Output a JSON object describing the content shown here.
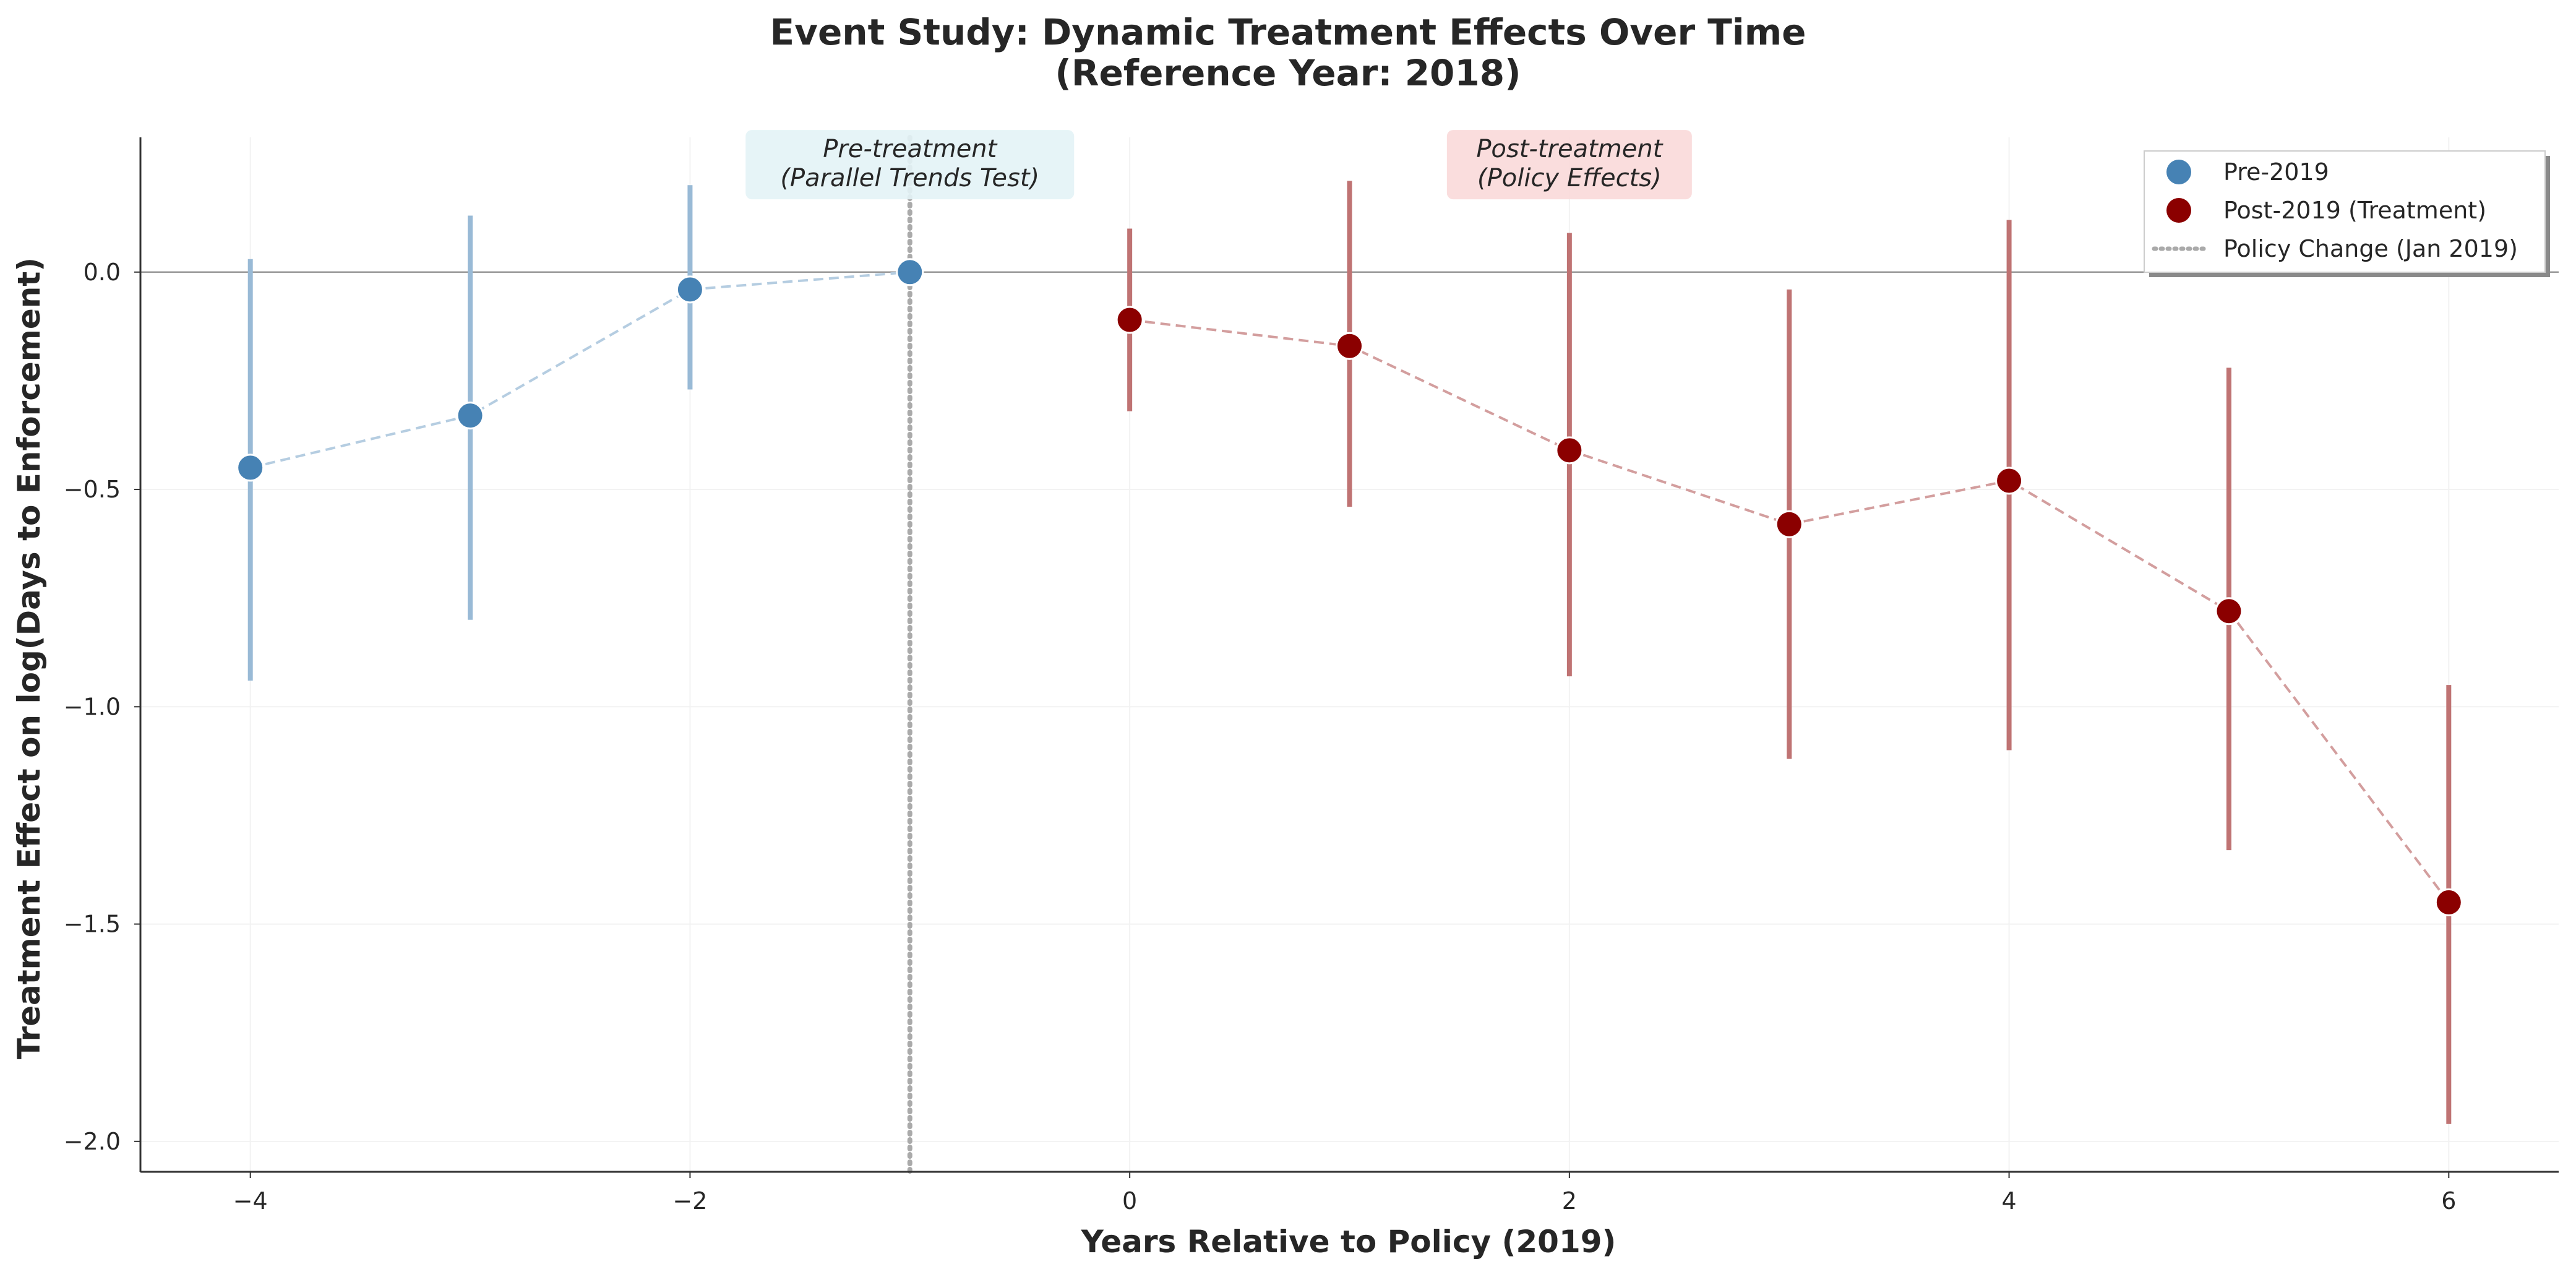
{
  "chart_data": {
    "type": "scatter",
    "title": "Event Study: Dynamic Treatment Effects Over Time",
    "subtitle": "(Reference Year: 2018)",
    "xlabel": "Years Relative to Policy (2019)",
    "ylabel": "Treatment Effect on log(Days to Enforcement)",
    "xlim": [
      -4.5,
      6.5
    ],
    "ylim": [
      -2.07,
      0.31
    ],
    "xticks": [
      -4,
      -2,
      0,
      2,
      4,
      6
    ],
    "xtick_labels": [
      "−4",
      "−2",
      "0",
      "2",
      "4",
      "6"
    ],
    "yticks": [
      0.0,
      -0.5,
      -1.0,
      -1.5,
      -2.0
    ],
    "ytick_labels": [
      "0.0",
      "−0.5",
      "−1.0",
      "−1.5",
      "−2.0"
    ],
    "grid": true,
    "legend_position": "top-right",
    "series": [
      {
        "name": "Pre-2019",
        "color": "#4682b4",
        "x": [
          -4,
          -3,
          -2,
          -1
        ],
        "y": [
          -0.45,
          -0.33,
          -0.04,
          0.0
        ],
        "ci_low": [
          -0.94,
          -0.8,
          -0.27,
          0.0
        ],
        "ci_high": [
          0.03,
          0.13,
          0.2,
          0.0
        ]
      },
      {
        "name": "Post-2019 (Treatment)",
        "color": "#8b0000",
        "x": [
          0,
          1,
          2,
          3,
          4,
          5,
          6
        ],
        "y": [
          -0.11,
          -0.17,
          -0.41,
          -0.58,
          -0.48,
          -0.78,
          -1.45
        ],
        "ci_low": [
          -0.32,
          -0.54,
          -0.93,
          -1.12,
          -1.1,
          -1.33,
          -1.96
        ],
        "ci_high": [
          0.1,
          0.21,
          0.09,
          -0.04,
          0.12,
          -0.22,
          -0.95
        ]
      }
    ],
    "reference_lines": {
      "vertical": {
        "x": -1,
        "label": "Policy Change (Jan 2019)",
        "color": "#aaaaaa"
      },
      "horizontal": {
        "y": 0
      }
    },
    "annotations": [
      {
        "lines": [
          "Pre-treatment",
          "(Parallel Trends Test)"
        ],
        "x": -1,
        "y": 0.27,
        "color": "#e3f3f6"
      },
      {
        "lines": [
          "Post-treatment",
          "(Policy Effects)"
        ],
        "x": 2,
        "y": 0.27,
        "color": "#f9d9d9"
      }
    ]
  }
}
